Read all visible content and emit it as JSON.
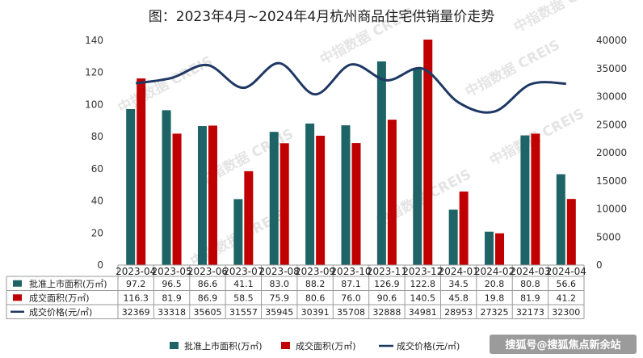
{
  "chart_data": {
    "type": "bar",
    "title": "图：2023年4月~2024年4月杭州商品住宅供销量价走势",
    "categories": [
      "2023-04",
      "2023-05",
      "2023-06",
      "2023-07",
      "2023-08",
      "2023-09",
      "2023-10",
      "2023-11",
      "2023-12",
      "2024-01",
      "2024-02",
      "2024-03",
      "2024-04"
    ],
    "series": [
      {
        "name": "批准上市面积(万㎡)",
        "type": "bar",
        "axis": "left",
        "color": "#1e6466",
        "values": [
          97.2,
          96.5,
          86.6,
          41.1,
          83.0,
          88.2,
          87.1,
          126.9,
          122.8,
          34.5,
          20.8,
          80.8,
          56.6
        ]
      },
      {
        "name": "成交面积(万㎡)",
        "type": "bar",
        "axis": "left",
        "color": "#c00000",
        "values": [
          116.3,
          81.9,
          86.9,
          58.5,
          75.9,
          80.6,
          76.0,
          90.6,
          140.5,
          45.8,
          19.8,
          81.9,
          41.2
        ]
      },
      {
        "name": "成交价格(元/㎡)",
        "type": "line",
        "axis": "right",
        "color": "#1f3864",
        "values": [
          32369,
          33318,
          35605,
          31557,
          35945,
          30391,
          35708,
          32888,
          34981,
          28953,
          27325,
          32173,
          32300
        ]
      }
    ],
    "y_left": {
      "min": 0,
      "max": 140,
      "ticks": [
        0,
        20,
        40,
        60,
        80,
        100,
        120,
        140
      ]
    },
    "y_right": {
      "min": 0,
      "max": 40000,
      "ticks": [
        0,
        5000,
        10000,
        15000,
        20000,
        25000,
        30000,
        35000,
        40000
      ]
    },
    "table": {
      "rows": [
        {
          "label": "批准上市面积(万㎡)",
          "display": [
            "97.2",
            "96.5",
            "86.6",
            "41.1",
            "83.0",
            "88.2",
            "87.1",
            "126.9",
            "122.8",
            "34.5",
            "20.8",
            "80.8",
            "56.6"
          ]
        },
        {
          "label": "成交面积(万㎡)",
          "display": [
            "116.3",
            "81.9",
            "86.9",
            "58.5",
            "75.9",
            "80.6",
            "76.0",
            "90.6",
            "140.5",
            "45.8",
            "19.8",
            "81.9",
            "41.2"
          ]
        },
        {
          "label": "成交价格(元/㎡)",
          "display": [
            "32369",
            "33318",
            "35605",
            "31557",
            "35945",
            "30391",
            "35708",
            "32888",
            "34981",
            "28953",
            "27325",
            "32173",
            "32300"
          ]
        }
      ]
    },
    "legend_position": "bottom",
    "grid": false
  },
  "watermark": "中指数据 CREIS",
  "source_credit": "搜狐号@搜狐焦点新余站"
}
